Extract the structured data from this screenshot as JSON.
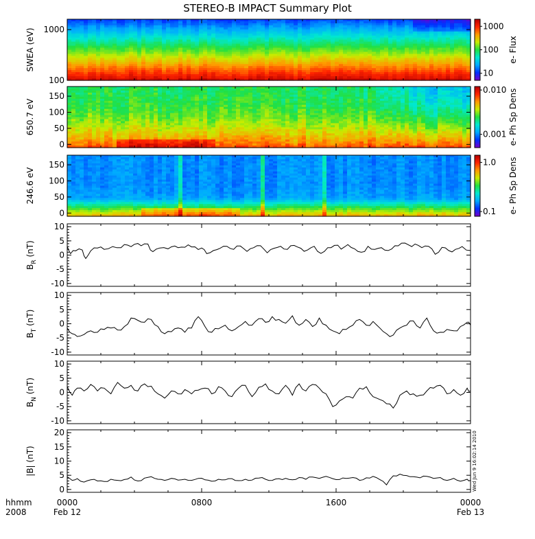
{
  "title": "STEREO-B IMPACT Summary Plot",
  "stamp": "Wed Jun  9 16:02:14 2010",
  "time_axis": {
    "label_top": "hhmm",
    "label_bottom": "2008",
    "ticks": [
      {
        "hour": 0,
        "top": "0000",
        "bottom": "Feb 12"
      },
      {
        "hour": 8,
        "top": "0800",
        "bottom": ""
      },
      {
        "hour": 16,
        "top": "1600",
        "bottom": ""
      },
      {
        "hour": 24,
        "top": "0000",
        "bottom": "Feb 13"
      }
    ],
    "range_hours": [
      0,
      24
    ]
  },
  "colors": {
    "spectrogram_scale": [
      "#7a00c8",
      "#0030ff",
      "#00aaff",
      "#00e8d0",
      "#22e040",
      "#c8ec00",
      "#ff9a00",
      "#ff2400",
      "#b40000"
    ],
    "line": "#000000"
  },
  "chart_data": [
    {
      "type": "heatmap",
      "id": "swea",
      "ylabel": "SWEA (eV)",
      "yscale": "log",
      "ylim": [
        100,
        1600
      ],
      "yticks": [
        "100",
        "1000"
      ],
      "colorbar": {
        "label": "e- Flux",
        "scale": "log",
        "range": [
          5,
          2000
        ],
        "ticks": [
          "10",
          "100",
          "1000"
        ]
      },
      "note": "flux peaks near 100-250 eV (red/orange), decreasing with energy to blue above ~1000 eV"
    },
    {
      "type": "heatmap",
      "id": "pad650",
      "ylabel": "650.7 eV",
      "ylim": [
        -10,
        180
      ],
      "yticks": [
        "0",
        "50",
        "100",
        "150"
      ],
      "colorbar": {
        "label": "e- Ph Sp Dens",
        "scale": "log",
        "range": [
          0.0005,
          0.012
        ],
        "ticks": [
          "0.001",
          "0.010"
        ]
      },
      "note": "highest density at pitch angles near 0; lower (blue) at large angles after ~1700"
    },
    {
      "type": "heatmap",
      "id": "pad246",
      "ylabel": "246.6 eV",
      "ylim": [
        -10,
        180
      ],
      "yticks": [
        "0",
        "50",
        "100",
        "150"
      ],
      "colorbar": {
        "label": "e- Ph Sp Dens",
        "scale": "log",
        "range": [
          0.08,
          1.4
        ],
        "ticks": [
          "0.1",
          "1.0"
        ]
      },
      "note": "strong field-aligned beam near 0 deg; blue above ~60 deg"
    },
    {
      "type": "line",
      "id": "br",
      "ylabel": "B",
      "ylabel_sub": "R",
      "ylabel_unit": "(nT)",
      "ylim": [
        -11,
        11
      ],
      "yticks": [
        "-10",
        "-5",
        "0",
        "5",
        "10"
      ],
      "x": [
        0,
        0.2,
        0.5,
        0.9,
        1.1,
        1.4,
        1.8,
        2.2,
        2.7,
        3.2,
        3.6,
        4.0,
        4.4,
        4.8,
        5.1,
        5.5,
        6.0,
        6.4,
        6.8,
        7.2,
        7.6,
        8.0,
        8.3,
        8.7,
        9.1,
        9.5,
        9.9,
        10.3,
        10.7,
        11.1,
        11.5,
        11.9,
        12.3,
        12.7,
        13.1,
        13.5,
        13.9,
        14.3,
        14.7,
        15.1,
        15.5,
        15.9,
        16.3,
        16.7,
        17.1,
        17.5,
        17.9,
        18.3,
        18.7,
        19.1,
        19.5,
        19.9,
        20.3,
        20.7,
        21.1,
        21.5,
        21.9,
        22.3,
        22.7,
        23.1,
        23.5,
        24.0
      ],
      "y": [
        3,
        0.5,
        1.5,
        1.8,
        -1.2,
        1.5,
        2.5,
        2.0,
        3.0,
        2.6,
        3.5,
        3.8,
        3.3,
        3.9,
        1.2,
        2.5,
        2.2,
        3.2,
        2.8,
        3.6,
        2.9,
        2.5,
        0.5,
        1.6,
        2.4,
        3.1,
        2.0,
        3.2,
        1.3,
        2.6,
        3.3,
        0.8,
        2.4,
        3.1,
        2.0,
        3.4,
        2.4,
        1.8,
        3.1,
        0.6,
        2.6,
        3.4,
        2.1,
        3.7,
        2.2,
        1.0,
        3.1,
        2.0,
        2.6,
        1.6,
        3.3,
        4.2,
        3.6,
        3.9,
        2.6,
        3.1,
        0.3,
        2.7,
        1.6,
        2.0,
        3.0,
        1.6
      ]
    },
    {
      "type": "line",
      "id": "bt",
      "ylabel": "B",
      "ylabel_sub": "T",
      "ylabel_unit": "(nT)",
      "ylim": [
        -11,
        11
      ],
      "yticks": [
        "-10",
        "-5",
        "0",
        "5",
        "10"
      ],
      "x": [
        0,
        0.3,
        0.6,
        1.0,
        1.4,
        1.8,
        2.2,
        2.6,
        3.0,
        3.4,
        3.8,
        4.2,
        4.6,
        5.0,
        5.4,
        5.8,
        6.2,
        6.6,
        7.0,
        7.4,
        7.8,
        8.2,
        8.6,
        9.0,
        9.4,
        9.8,
        10.2,
        10.6,
        11.0,
        11.4,
        11.8,
        12.2,
        12.6,
        13.0,
        13.4,
        13.8,
        14.2,
        14.6,
        15.0,
        15.4,
        15.8,
        16.2,
        16.6,
        17.0,
        17.4,
        17.8,
        18.2,
        18.6,
        19.0,
        19.4,
        19.8,
        20.2,
        20.6,
        21.0,
        21.4,
        21.8,
        22.2,
        22.6,
        23.0,
        23.4,
        23.8,
        24.0
      ],
      "y": [
        -1.5,
        -3.5,
        -4.5,
        -3.8,
        -2.5,
        -3.0,
        -2.0,
        -1.5,
        -2.2,
        -1.0,
        2.0,
        1.2,
        0.5,
        1.5,
        -1.0,
        -3.5,
        -2.8,
        -1.5,
        -3.0,
        -1.5,
        2.5,
        -1.0,
        -3.0,
        -1.8,
        -0.5,
        -2.5,
        -1.0,
        0.8,
        -0.5,
        1.8,
        0.5,
        2.5,
        1.5,
        0.2,
        2.8,
        -0.5,
        1.5,
        -1.0,
        2.0,
        -0.5,
        -2.5,
        -3.5,
        -2.0,
        -0.5,
        1.5,
        -0.5,
        0.8,
        -1.5,
        -3.5,
        -4.0,
        -1.5,
        -0.5,
        1.0,
        -1.5,
        2.0,
        -2.5,
        -3.0,
        -2.0,
        -2.5,
        -1.0,
        0.5,
        -0.5
      ]
    },
    {
      "type": "line",
      "id": "bn",
      "ylabel": "B",
      "ylabel_sub": "N",
      "ylabel_unit": "(nT)",
      "ylim": [
        -11,
        11
      ],
      "yticks": [
        "-10",
        "-5",
        "0",
        "5",
        "10"
      ],
      "x": [
        0,
        0.3,
        0.6,
        1.0,
        1.4,
        1.8,
        2.2,
        2.6,
        3.0,
        3.4,
        3.8,
        4.2,
        4.6,
        5.0,
        5.4,
        5.8,
        6.2,
        6.6,
        7.0,
        7.4,
        7.8,
        8.2,
        8.6,
        9.0,
        9.4,
        9.8,
        10.2,
        10.6,
        11.0,
        11.4,
        11.8,
        12.2,
        12.6,
        13.0,
        13.4,
        13.8,
        14.2,
        14.6,
        15.0,
        15.4,
        15.8,
        16.2,
        16.6,
        17.0,
        17.4,
        17.8,
        18.2,
        18.6,
        19.0,
        19.4,
        19.8,
        20.2,
        20.6,
        21.0,
        21.4,
        21.8,
        22.2,
        22.6,
        23.0,
        23.4,
        23.8,
        24.0
      ],
      "y": [
        2.0,
        -1.0,
        1.5,
        0.5,
        2.8,
        0.5,
        1.5,
        -0.5,
        3.5,
        1.5,
        2.5,
        0.5,
        3.0,
        2.2,
        -0.5,
        -2.0,
        0.5,
        -0.5,
        1.0,
        -0.5,
        0.8,
        1.5,
        -0.5,
        2.0,
        0.5,
        -1.5,
        1.5,
        2.5,
        -1.5,
        1.8,
        3.0,
        0.5,
        -0.5,
        2.5,
        -1.0,
        3.0,
        0.5,
        2.8,
        1.5,
        -0.5,
        -5.0,
        -3.0,
        -1.5,
        -2.0,
        1.5,
        2.0,
        -1.5,
        -2.5,
        -4.0,
        -5.5,
        -1.0,
        0.5,
        -0.5,
        -1.0,
        0.5,
        1.5,
        2.5,
        -0.5,
        1.0,
        -1.0,
        1.5,
        0.5
      ]
    },
    {
      "type": "line",
      "id": "bmag",
      "ylabel": "|B| (nT)",
      "ylim": [
        -1,
        21
      ],
      "yticks": [
        "0",
        "5",
        "10",
        "15",
        "20"
      ],
      "x": [
        0,
        0.3,
        0.6,
        1.0,
        1.4,
        1.8,
        2.2,
        2.6,
        3.0,
        3.4,
        3.8,
        4.2,
        4.6,
        5.0,
        5.4,
        5.8,
        6.2,
        6.6,
        7.0,
        7.4,
        7.8,
        8.2,
        8.6,
        9.0,
        9.4,
        9.8,
        10.2,
        10.6,
        11.0,
        11.4,
        11.8,
        12.2,
        12.6,
        13.0,
        13.4,
        13.8,
        14.2,
        14.6,
        15.0,
        15.4,
        15.8,
        16.2,
        16.6,
        17.0,
        17.4,
        17.8,
        18.2,
        18.6,
        19.0,
        19.4,
        19.8,
        20.2,
        20.6,
        21.0,
        21.4,
        21.8,
        22.2,
        22.6,
        23.0,
        23.4,
        23.8,
        24.0
      ],
      "y": [
        4.5,
        3.2,
        3.8,
        2.6,
        3.4,
        3.0,
        2.8,
        3.6,
        3.2,
        3.5,
        4.4,
        3.0,
        4.0,
        4.5,
        3.6,
        3.2,
        3.9,
        3.3,
        3.6,
        3.2,
        3.9,
        3.4,
        2.9,
        3.6,
        3.4,
        3.8,
        3.1,
        3.6,
        3.3,
        4.0,
        3.6,
        3.2,
        3.8,
        3.9,
        3.4,
        4.2,
        3.6,
        4.4,
        3.9,
        4.6,
        3.8,
        3.5,
        3.9,
        4.2,
        3.2,
        4.1,
        4.6,
        3.5,
        1.6,
        4.8,
        5.4,
        4.9,
        4.5,
        4.1,
        4.6,
        3.9,
        4.2,
        3.2,
        3.9,
        2.9,
        3.6,
        3.2
      ]
    }
  ]
}
